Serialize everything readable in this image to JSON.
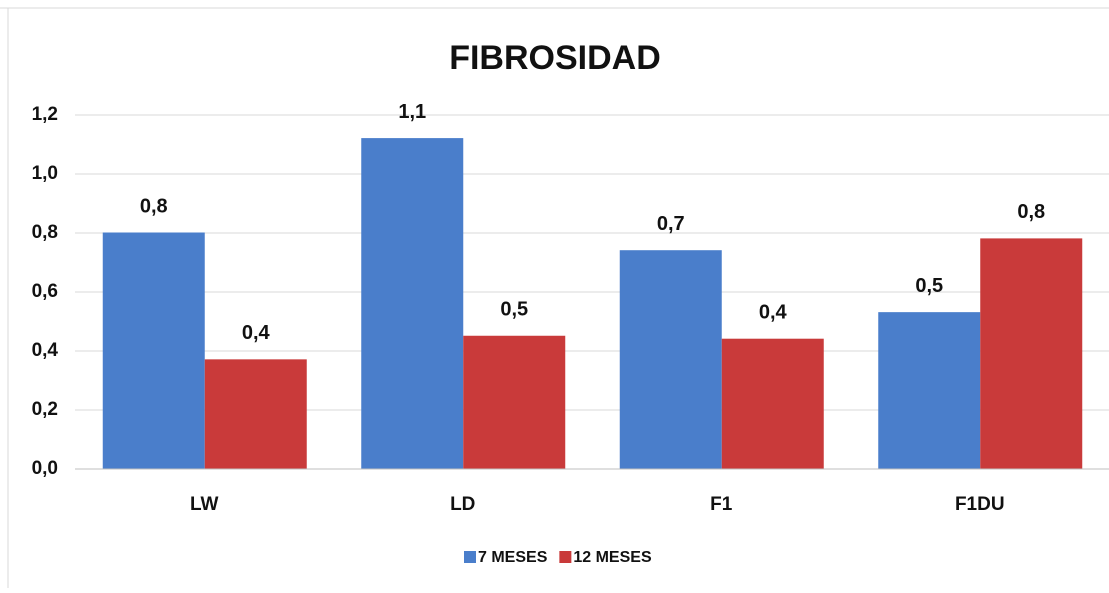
{
  "chart_data": {
    "type": "bar",
    "title": "FIBROSIDAD",
    "categories": [
      "LW",
      "LD",
      "F1",
      "F1DU"
    ],
    "series": [
      {
        "name": "7 MESES",
        "color": "#4a7ecb",
        "values": [
          0.8,
          1.12,
          0.74,
          0.53
        ],
        "value_labels": [
          "0,8",
          "1,1",
          "0,7",
          "0,5"
        ]
      },
      {
        "name": "12 MESES",
        "color": "#c93a3a",
        "values": [
          0.37,
          0.45,
          0.44,
          0.78
        ],
        "value_labels": [
          "0,4",
          "0,5",
          "0,4",
          "0,8"
        ]
      }
    ],
    "ylim": [
      0,
      1.2
    ],
    "yticks": [
      {
        "value": 0,
        "label": "0,0"
      },
      {
        "value": 0.2,
        "label": "0,2"
      },
      {
        "value": 0.4,
        "label": "0,4"
      },
      {
        "value": 0.6,
        "label": "0,6"
      },
      {
        "value": 0.8,
        "label": "0,8"
      },
      {
        "value": 1.0,
        "label": "1,0"
      },
      {
        "value": 1.2,
        "label": "1,2"
      }
    ],
    "grid": true,
    "legend": "bottom"
  }
}
